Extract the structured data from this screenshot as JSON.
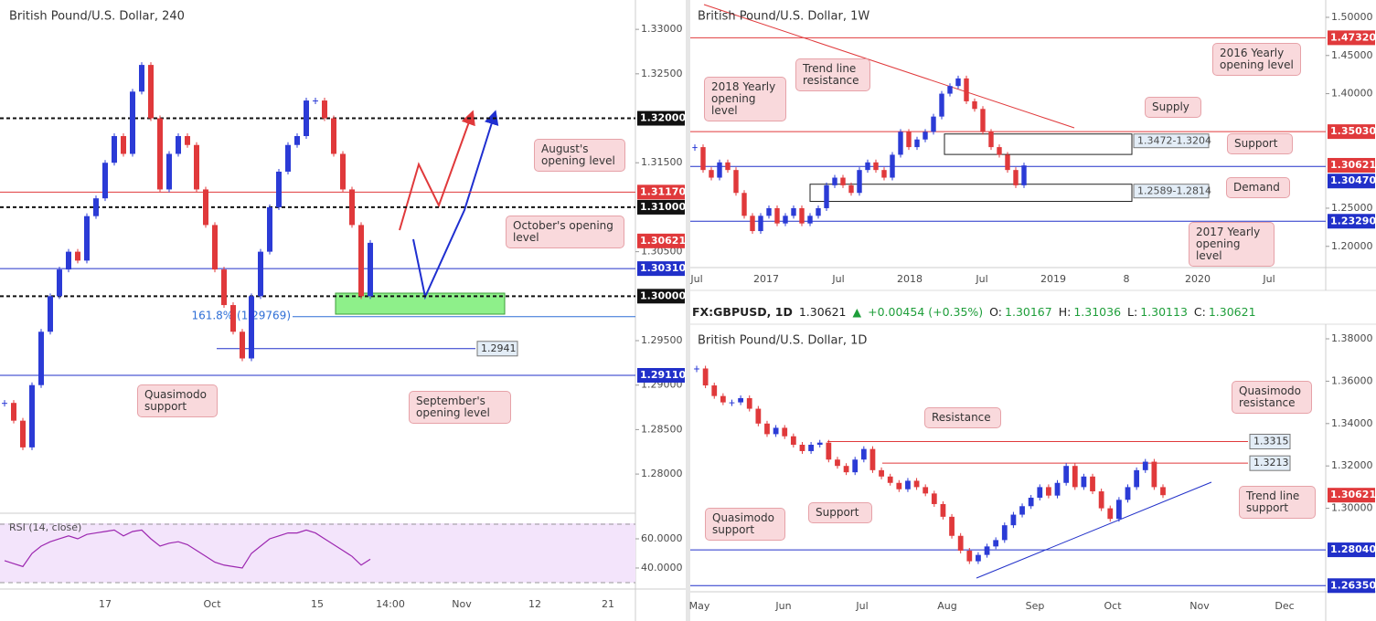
{
  "chart_data": [
    {
      "type": "candlestick",
      "title": "British Pound/U.S. Dollar, 240",
      "up_color": "#2b3bd6",
      "down_color": "#e0393b",
      "ylim": [
        1.2758,
        1.3333
      ],
      "yticks": [
        {
          "value": 1.33,
          "label": "1.33000"
        },
        {
          "value": 1.325,
          "label": "1.32500"
        },
        {
          "value": 1.315,
          "label": "1.31500"
        },
        {
          "value": 1.305,
          "label": "1.30500"
        },
        {
          "value": 1.295,
          "label": "1.29500"
        },
        {
          "value": 1.29,
          "label": "1.29000"
        },
        {
          "value": 1.285,
          "label": "1.28500"
        },
        {
          "value": 1.28,
          "label": "1.28000"
        }
      ],
      "xticks": [
        "17",
        "Oct",
        "15",
        "14:00",
        "Nov",
        "12",
        "21"
      ],
      "values": [
        1.288,
        1.286,
        1.283,
        1.29,
        1.296,
        1.3,
        1.303,
        1.305,
        1.304,
        1.309,
        1.311,
        1.315,
        1.318,
        1.316,
        1.323,
        1.326,
        1.32,
        1.312,
        1.316,
        1.318,
        1.317,
        1.312,
        1.308,
        1.303,
        1.299,
        1.296,
        1.293,
        1.3,
        1.305,
        1.31,
        1.314,
        1.317,
        1.318,
        1.322,
        1.322,
        1.32,
        1.316,
        1.312,
        1.308,
        1.3,
        1.306
      ],
      "levels": [
        {
          "value": 1.32,
          "label": "1.32000",
          "color": "#111111",
          "style": "dashed"
        },
        {
          "value": 1.3117,
          "label": "1.31170",
          "color": "#e0393b",
          "style": "solid"
        },
        {
          "value": 1.31,
          "label": "1.31000",
          "color": "#111111",
          "style": "dashed"
        },
        {
          "value": 1.30621,
          "label": "1.30621",
          "color": "#e0393b",
          "style": "tag"
        },
        {
          "value": 1.3031,
          "label": "1.30310",
          "color": "#2130c9",
          "style": "solid"
        },
        {
          "value": 1.3,
          "label": "1.30000",
          "color": "#111111",
          "style": "dashed"
        },
        {
          "value": 1.29769,
          "label": "161.8% (1.29769)",
          "color": "#2f6fd6",
          "style": "fib"
        },
        {
          "value": 1.2941,
          "label": "1.2941",
          "color": "#2130c9",
          "style": "box"
        },
        {
          "value": 1.2911,
          "label": "1.29110",
          "color": "#2130c9",
          "style": "solid"
        }
      ],
      "annotations": [
        "August's opening level",
        "October's opening level",
        "Quasimodo support",
        "September's opening level"
      ],
      "rsi": {
        "label": "RSI (14, close)",
        "color": "#9c27b0",
        "ylim": [
          25.6,
          77.5
        ],
        "bands": [
          30,
          70
        ],
        "yticks": [
          {
            "value": 60,
            "label": "60.0000"
          },
          {
            "value": 40,
            "label": "40.0000"
          }
        ],
        "values": [
          45,
          43,
          41,
          50,
          55,
          58,
          60,
          62,
          60,
          63,
          64,
          65,
          66,
          62,
          65,
          66,
          60,
          55,
          57,
          58,
          56,
          52,
          48,
          44,
          42,
          41,
          40,
          50,
          55,
          60,
          62,
          64,
          64,
          66,
          64,
          60,
          56,
          52,
          48,
          42,
          46
        ]
      }
    },
    {
      "type": "candlestick",
      "title": "British Pound/U.S. Dollar, 1W",
      "up_color": "#2b3bd6",
      "down_color": "#e0393b",
      "ylim": [
        1.1722,
        1.5227
      ],
      "yticks": [
        {
          "value": 1.5,
          "label": "1.50000"
        },
        {
          "value": 1.45,
          "label": "1.45000"
        },
        {
          "value": 1.4,
          "label": "1.40000"
        },
        {
          "value": 1.25,
          "label": "1.25000"
        },
        {
          "value": 1.2,
          "label": "1.20000"
        }
      ],
      "xticks": [
        "Jul",
        "2017",
        "Jul",
        "2018",
        "Jul",
        "2019",
        "8",
        "2020",
        "Jul"
      ],
      "values": [
        1.33,
        1.3,
        1.29,
        1.31,
        1.3,
        1.27,
        1.24,
        1.22,
        1.24,
        1.25,
        1.23,
        1.24,
        1.25,
        1.23,
        1.24,
        1.25,
        1.28,
        1.29,
        1.28,
        1.27,
        1.3,
        1.31,
        1.3,
        1.29,
        1.32,
        1.35,
        1.33,
        1.34,
        1.35,
        1.37,
        1.4,
        1.41,
        1.42,
        1.39,
        1.38,
        1.35,
        1.33,
        1.32,
        1.3,
        1.28,
        1.306
      ],
      "levels": [
        {
          "value": 1.4732,
          "label": "1.47320",
          "color": "#e0393b",
          "style": "solid"
        },
        {
          "value": 1.3503,
          "label": "1.35030",
          "color": "#e0393b",
          "style": "solid"
        },
        {
          "value": 1.30621,
          "label": "1.30621",
          "color": "#e0393b",
          "style": "tag"
        },
        {
          "value": 1.3047,
          "label": "1.30470",
          "color": "#2130c9",
          "style": "solid"
        },
        {
          "value": 1.2329,
          "label": "1.23290",
          "color": "#2130c9",
          "style": "solid"
        }
      ],
      "zones": [
        {
          "range": [
            1.3472,
            1.3204
          ],
          "label": "1.3472-1.3204"
        },
        {
          "range": [
            1.2589,
            1.2814
          ],
          "label": "1.2589-1.2814"
        }
      ],
      "annotations": [
        "Trend line resistance",
        "2018 Yearly opening level",
        "Supply",
        "Support",
        "Demand",
        "2016 Yearly opening level",
        "2017 Yearly opening level"
      ]
    },
    {
      "type": "candlestick",
      "title": "British Pound/U.S. Dollar, 1D",
      "up_color": "#2b3bd6",
      "down_color": "#e0393b",
      "ylim": [
        1.2606,
        1.3869
      ],
      "yticks": [
        {
          "value": 1.38,
          "label": "1.38000"
        },
        {
          "value": 1.36,
          "label": "1.36000"
        },
        {
          "value": 1.34,
          "label": "1.34000"
        },
        {
          "value": 1.32,
          "label": "1.32000"
        },
        {
          "value": 1.3,
          "label": "1.30000"
        }
      ],
      "xticks": [
        "May",
        "Jun",
        "Jul",
        "Aug",
        "Sep",
        "Oct",
        "Nov",
        "Dec"
      ],
      "values": [
        1.366,
        1.358,
        1.353,
        1.35,
        1.35,
        1.352,
        1.347,
        1.34,
        1.335,
        1.338,
        1.334,
        1.33,
        1.327,
        1.33,
        1.331,
        1.323,
        1.32,
        1.317,
        1.323,
        1.328,
        1.318,
        1.315,
        1.312,
        1.309,
        1.313,
        1.31,
        1.307,
        1.302,
        1.296,
        1.287,
        1.28,
        1.275,
        1.278,
        1.282,
        1.285,
        1.292,
        1.297,
        1.301,
        1.305,
        1.31,
        1.306,
        1.312,
        1.32,
        1.31,
        1.315,
        1.308,
        1.3,
        1.295,
        1.304,
        1.31,
        1.318,
        1.322,
        1.31,
        1.3062
      ],
      "levels": [
        {
          "value": 1.3315,
          "label": "1.3315",
          "color": "#e0393b",
          "style": "box"
        },
        {
          "value": 1.3213,
          "label": "1.3213",
          "color": "#e0393b",
          "style": "box"
        },
        {
          "value": 1.30621,
          "label": "1.30621",
          "color": "#e0393b",
          "style": "tag"
        },
        {
          "value": 1.2804,
          "label": "1.28040",
          "color": "#2130c9",
          "style": "solid"
        },
        {
          "value": 1.2635,
          "label": "1.26350",
          "color": "#2130c9",
          "style": "solid"
        }
      ],
      "annotations": [
        "Quasimodo resistance",
        "Resistance",
        "Trend line support",
        "Quasimodo support",
        "Support"
      ]
    }
  ],
  "header": {
    "symbol": "FX:GBPUSD, 1D",
    "price": "1.30621",
    "arrow": "▲",
    "change": "+0.00454 (+0.35%)",
    "ohlc": [
      {
        "key": "O:",
        "value": "1.30167"
      },
      {
        "key": "H:",
        "value": "1.31036"
      },
      {
        "key": "L:",
        "value": "1.30113"
      },
      {
        "key": "C:",
        "value": "1.30621"
      }
    ]
  }
}
